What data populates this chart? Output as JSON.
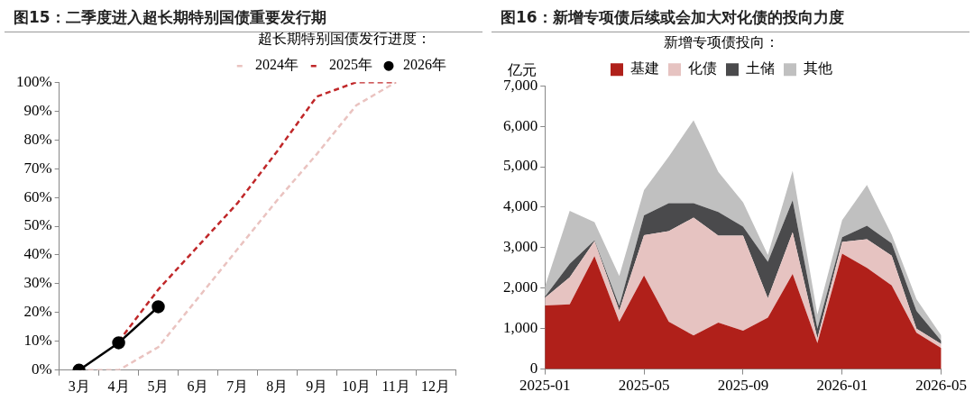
{
  "chart_data": [
    {
      "type": "line",
      "title": "图15：二季度进入超长期特别国债重要发行期",
      "legend_title": "超长期特别国债发行进度：",
      "legend": "top right",
      "categories": [
        "3月",
        "4月",
        "5月",
        "6月",
        "7月",
        "8月",
        "9月",
        "10月",
        "11月",
        "12月"
      ],
      "series": [
        {
          "name": "2024年",
          "color": "#eac3c0",
          "line_style": "dashed",
          "marker": "none",
          "values": [
            0,
            0,
            8,
            25,
            42,
            59,
            75,
            92,
            100,
            null
          ]
        },
        {
          "name": "2025年",
          "color": "#c0282a",
          "line_style": "dashed",
          "marker": "none",
          "values": [
            null,
            10,
            28,
            43,
            58,
            76,
            95,
            100,
            100,
            null
          ]
        },
        {
          "name": "2026年",
          "color": "#000000",
          "line_style": "solid",
          "marker": "circle",
          "values": [
            0,
            9.5,
            22,
            null,
            null,
            null,
            null,
            null,
            null,
            null
          ]
        }
      ],
      "ylim": [
        0,
        100
      ],
      "yticks": [
        {
          "value": 0,
          "label": "0%"
        },
        {
          "value": 10,
          "label": "10%"
        },
        {
          "value": 20,
          "label": "20%"
        },
        {
          "value": 30,
          "label": "30%"
        },
        {
          "value": 40,
          "label": "40%"
        },
        {
          "value": 50,
          "label": "50%"
        },
        {
          "value": 60,
          "label": "60%"
        },
        {
          "value": 70,
          "label": "70%"
        },
        {
          "value": 80,
          "label": "80%"
        },
        {
          "value": 90,
          "label": "90%"
        },
        {
          "value": 100,
          "label": "100%"
        }
      ]
    },
    {
      "type": "area",
      "stacked": true,
      "title": "图16：新增专项债后续或会加大对化债的投向力度",
      "ylabel": "亿元",
      "legend_title": "新增专项债投向：",
      "legend": "top",
      "x": [
        "2025-01",
        "2025-02",
        "2025-03",
        "2025-04",
        "2025-05",
        "2025-06",
        "2025-07",
        "2025-08",
        "2025-09",
        "2025-10",
        "2025-11",
        "2025-12",
        "2026-01",
        "2026-02",
        "2026-03",
        "2026-04",
        "2026-05"
      ],
      "series": [
        {
          "name": "基建",
          "color": "#b0201a",
          "values": [
            1570,
            1600,
            2790,
            1170,
            2310,
            1170,
            830,
            1150,
            950,
            1270,
            2350,
            640,
            2850,
            2500,
            2070,
            900,
            520
          ]
        },
        {
          "name": "化债",
          "color": "#e6c3c1",
          "values": [
            190,
            670,
            370,
            280,
            1000,
            2240,
            2910,
            2150,
            2350,
            480,
            1030,
            120,
            290,
            710,
            730,
            100,
            100
          ]
        },
        {
          "name": "土储",
          "color": "#4a4a4c",
          "values": [
            30,
            330,
            20,
            110,
            490,
            690,
            360,
            580,
            220,
            900,
            790,
            240,
            120,
            330,
            310,
            440,
            80
          ]
        },
        {
          "name": "其他",
          "color": "#c0c0c0",
          "values": [
            250,
            1310,
            450,
            740,
            620,
            1150,
            2050,
            990,
            600,
            170,
            730,
            350,
            420,
            1010,
            210,
            290,
            130
          ]
        }
      ],
      "xlim": [
        "2025-01",
        "2026-05"
      ],
      "xticks": [
        "2025-01",
        "2025-05",
        "2025-09",
        "2026-01",
        "2026-05"
      ],
      "ylim": [
        0,
        7000
      ],
      "yticks": [
        {
          "value": 0,
          "label": "0"
        },
        {
          "value": 1000,
          "label": "1,000"
        },
        {
          "value": 2000,
          "label": "2,000"
        },
        {
          "value": 3000,
          "label": "3,000"
        },
        {
          "value": 4000,
          "label": "4,000"
        },
        {
          "value": 5000,
          "label": "5,000"
        },
        {
          "value": 6000,
          "label": "6,000"
        },
        {
          "value": 7000,
          "label": "7,000"
        }
      ]
    }
  ]
}
